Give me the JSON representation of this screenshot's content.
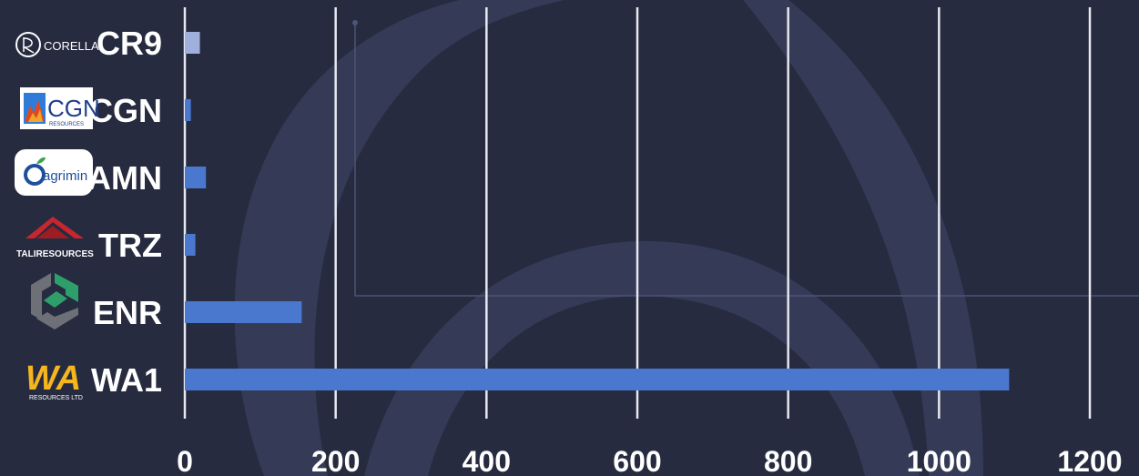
{
  "chart_data": {
    "type": "bar",
    "orientation": "horizontal",
    "categories": [
      "CR9",
      "CGN",
      "AMN",
      "TRZ",
      "ENR",
      "WA1"
    ],
    "values": [
      20,
      8,
      28,
      14,
      155,
      1093
    ],
    "xlim": [
      0,
      1200
    ],
    "xticks": [
      "0",
      "200",
      "400",
      "600",
      "800",
      "1000",
      "1200"
    ],
    "grid": "vertical",
    "bar_colors": [
      "#9fb0dc",
      "#4a78cf",
      "#4a78cf",
      "#4a78cf",
      "#4a78cf",
      "#4a78cf"
    ],
    "title": "",
    "xlabel": "",
    "ylabel": ""
  },
  "logos": {
    "corella": {
      "text": "CORELLA",
      "icon": "corella-ring-icon"
    },
    "cgn": {
      "text": "CGN",
      "subtext": "RESOURCES",
      "icon": "cgn-flame-icon"
    },
    "agrimin": {
      "text": "agrimin",
      "icon": "agrimin-leaf-icon"
    },
    "tali": {
      "text": "TALIRESOURCES",
      "icon": "tali-mountain-icon"
    },
    "enr": {
      "icon": "enr-hexagon-icon"
    },
    "wa1": {
      "text": "WA",
      "subtext": "RESOURCES LTD",
      "icon": "wa1-letters-icon"
    }
  },
  "colors": {
    "background": "#262b40",
    "watermark": "#353b57",
    "grid": "#e6e8ef",
    "bar": "#4a78cf",
    "bar_highlight": "#9fb0dc"
  }
}
